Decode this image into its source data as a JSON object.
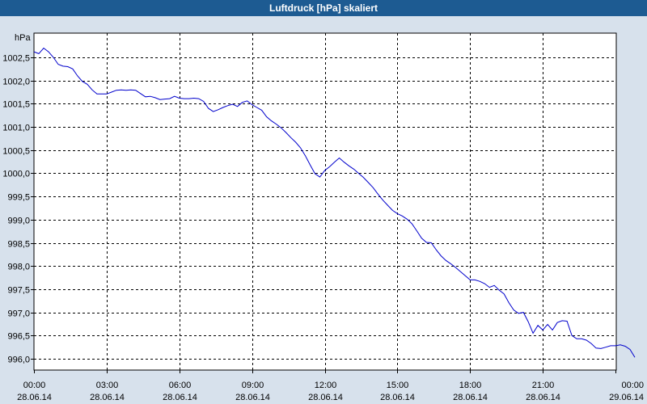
{
  "window": {
    "title": "Luftdruck [hPa] skaliert"
  },
  "chart_data": {
    "type": "line",
    "title": "Luftdruck [hPa] skaliert",
    "ylabel": "hPa",
    "xlim": [
      0,
      24
    ],
    "ylim": [
      995.8,
      1002.9
    ],
    "grid": true,
    "y_ticks": [
      "996,0",
      "996,5",
      "997,0",
      "997,5",
      "998,0",
      "998,5",
      "999,0",
      "999,5",
      "1000,0",
      "1000,5",
      "1001,0",
      "1001,5",
      "1002,0",
      "1002,5"
    ],
    "y_tick_values": [
      996.0,
      996.5,
      997.0,
      997.5,
      998.0,
      998.5,
      999.0,
      999.5,
      1000.0,
      1000.5,
      1001.0,
      1001.5,
      1002.0,
      1002.5
    ],
    "x_ticks": [
      {
        "time": "00:00",
        "date": "28.06.14"
      },
      {
        "time": "03:00",
        "date": "28.06.14"
      },
      {
        "time": "06:00",
        "date": "28.06.14"
      },
      {
        "time": "09:00",
        "date": "28.06.14"
      },
      {
        "time": "12:00",
        "date": "28.06.14"
      },
      {
        "time": "15:00",
        "date": "28.06.14"
      },
      {
        "time": "18:00",
        "date": "28.06.14"
      },
      {
        "time": "21:00",
        "date": "28.06.14"
      },
      {
        "time": "00:00",
        "date": "29.06.14"
      }
    ],
    "x_tick_values": [
      0,
      3,
      6,
      9,
      12,
      15,
      18,
      21,
      24
    ],
    "line_color": "#0000cc",
    "series": [
      {
        "points": [
          [
            0.0,
            1002.62
          ],
          [
            0.2,
            1002.58
          ],
          [
            0.4,
            1002.7
          ],
          [
            0.6,
            1002.62
          ],
          [
            0.8,
            1002.5
          ],
          [
            1.0,
            1002.35
          ],
          [
            1.2,
            1002.31
          ],
          [
            1.4,
            1002.3
          ],
          [
            1.6,
            1002.25
          ],
          [
            1.8,
            1002.1
          ],
          [
            2.0,
            1001.98
          ],
          [
            2.2,
            1001.92
          ],
          [
            2.4,
            1001.8
          ],
          [
            2.6,
            1001.71
          ],
          [
            2.8,
            1001.71
          ],
          [
            3.0,
            1001.71
          ],
          [
            3.2,
            1001.75
          ],
          [
            3.4,
            1001.79
          ],
          [
            3.6,
            1001.8
          ],
          [
            3.8,
            1001.79
          ],
          [
            4.0,
            1001.8
          ],
          [
            4.2,
            1001.79
          ],
          [
            4.4,
            1001.72
          ],
          [
            4.6,
            1001.65
          ],
          [
            4.8,
            1001.66
          ],
          [
            5.0,
            1001.63
          ],
          [
            5.2,
            1001.59
          ],
          [
            5.4,
            1001.6
          ],
          [
            5.6,
            1001.61
          ],
          [
            5.8,
            1001.66
          ],
          [
            6.0,
            1001.62
          ],
          [
            6.2,
            1001.61
          ],
          [
            6.4,
            1001.61
          ],
          [
            6.6,
            1001.62
          ],
          [
            6.8,
            1001.61
          ],
          [
            7.0,
            1001.55
          ],
          [
            7.2,
            1001.4
          ],
          [
            7.4,
            1001.33
          ],
          [
            7.6,
            1001.37
          ],
          [
            7.8,
            1001.42
          ],
          [
            8.0,
            1001.46
          ],
          [
            8.2,
            1001.49
          ],
          [
            8.4,
            1001.44
          ],
          [
            8.6,
            1001.53
          ],
          [
            8.8,
            1001.56
          ],
          [
            9.0,
            1001.48
          ],
          [
            9.2,
            1001.42
          ],
          [
            9.4,
            1001.36
          ],
          [
            9.6,
            1001.22
          ],
          [
            9.8,
            1001.13
          ],
          [
            10.0,
            1001.06
          ],
          [
            10.2,
            1000.98
          ],
          [
            10.4,
            1000.88
          ],
          [
            10.6,
            1000.77
          ],
          [
            10.8,
            1000.67
          ],
          [
            11.0,
            1000.55
          ],
          [
            11.2,
            1000.38
          ],
          [
            11.4,
            1000.18
          ],
          [
            11.6,
            999.99
          ],
          [
            11.8,
            999.92
          ],
          [
            12.0,
            1000.06
          ],
          [
            12.2,
            1000.14
          ],
          [
            12.4,
            1000.24
          ],
          [
            12.6,
            1000.33
          ],
          [
            12.8,
            1000.24
          ],
          [
            13.0,
            1000.16
          ],
          [
            13.2,
            1000.09
          ],
          [
            13.4,
            1000.0
          ],
          [
            13.6,
            999.91
          ],
          [
            13.8,
            999.8
          ],
          [
            14.0,
            999.69
          ],
          [
            14.2,
            999.55
          ],
          [
            14.4,
            999.42
          ],
          [
            14.6,
            999.31
          ],
          [
            14.8,
            999.2
          ],
          [
            15.0,
            999.13
          ],
          [
            15.2,
            999.08
          ],
          [
            15.4,
            999.01
          ],
          [
            15.6,
            998.91
          ],
          [
            15.8,
            998.76
          ],
          [
            16.0,
            998.6
          ],
          [
            16.2,
            998.51
          ],
          [
            16.4,
            998.5
          ],
          [
            16.6,
            998.35
          ],
          [
            16.8,
            998.22
          ],
          [
            17.0,
            998.12
          ],
          [
            17.2,
            998.05
          ],
          [
            17.4,
            997.97
          ],
          [
            17.6,
            997.88
          ],
          [
            17.8,
            997.79
          ],
          [
            18.0,
            997.7
          ],
          [
            18.2,
            997.7
          ],
          [
            18.4,
            997.67
          ],
          [
            18.6,
            997.62
          ],
          [
            18.8,
            997.54
          ],
          [
            19.0,
            997.58
          ],
          [
            19.2,
            997.48
          ],
          [
            19.4,
            997.4
          ],
          [
            19.6,
            997.21
          ],
          [
            19.8,
            997.05
          ],
          [
            20.0,
            996.98
          ],
          [
            20.2,
            997.0
          ],
          [
            20.4,
            996.8
          ],
          [
            20.6,
            996.55
          ],
          [
            20.8,
            996.72
          ],
          [
            21.0,
            996.62
          ],
          [
            21.2,
            996.74
          ],
          [
            21.4,
            996.62
          ],
          [
            21.6,
            996.78
          ],
          [
            21.8,
            996.82
          ],
          [
            22.0,
            996.81
          ],
          [
            22.2,
            996.5
          ],
          [
            22.4,
            996.43
          ],
          [
            22.6,
            996.43
          ],
          [
            22.8,
            996.4
          ],
          [
            23.0,
            996.33
          ],
          [
            23.2,
            996.23
          ],
          [
            23.4,
            996.22
          ],
          [
            23.6,
            996.25
          ],
          [
            23.8,
            996.28
          ],
          [
            24.0,
            996.28
          ],
          [
            24.2,
            996.3
          ],
          [
            24.4,
            996.27
          ],
          [
            24.6,
            996.2
          ],
          [
            24.8,
            996.03
          ]
        ]
      }
    ]
  }
}
